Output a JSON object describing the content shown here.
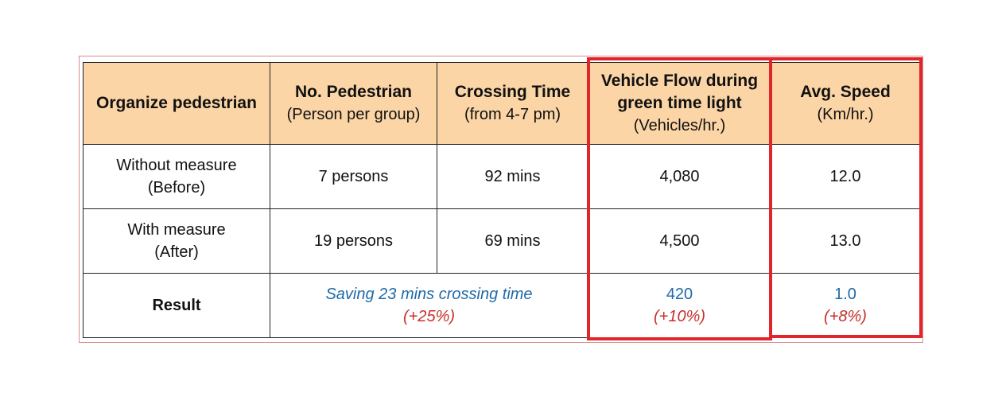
{
  "header": {
    "col1": "Organize pedestrian",
    "col2_title": "No. Pedestrian",
    "col2_sub": "(Person per group)",
    "col3_title": "Crossing Time",
    "col3_sub": "(from 4-7 pm)",
    "col4_title_line1": "Vehicle Flow during",
    "col4_title_line2": "green time light",
    "col4_sub": "(Vehicles/hr.)",
    "col5_title": "Avg. Speed",
    "col5_sub": "(Km/hr.)"
  },
  "rows": [
    {
      "label_line1": "Without measure",
      "label_line2": "(Before)",
      "pedestrians": "7 persons",
      "crossing_time": "92 mins",
      "vehicle_flow": "4,080",
      "avg_speed": "12.0"
    },
    {
      "label_line1": "With measure",
      "label_line2": "(After)",
      "pedestrians": "19 persons",
      "crossing_time": "69 mins",
      "vehicle_flow": "4,500",
      "avg_speed": "13.0"
    }
  ],
  "result": {
    "label": "Result",
    "crossing_saving": "Saving 23 mins crossing time",
    "crossing_pct": "(+25%)",
    "flow_gain": "420",
    "flow_pct": "(+10%)",
    "speed_gain": "1.0",
    "speed_pct": "(+8%)"
  },
  "colors": {
    "header_bg": "#fcd5a6",
    "highlight": "#e0262b",
    "result_blue": "#1f6aa8",
    "result_red": "#c8302a"
  }
}
